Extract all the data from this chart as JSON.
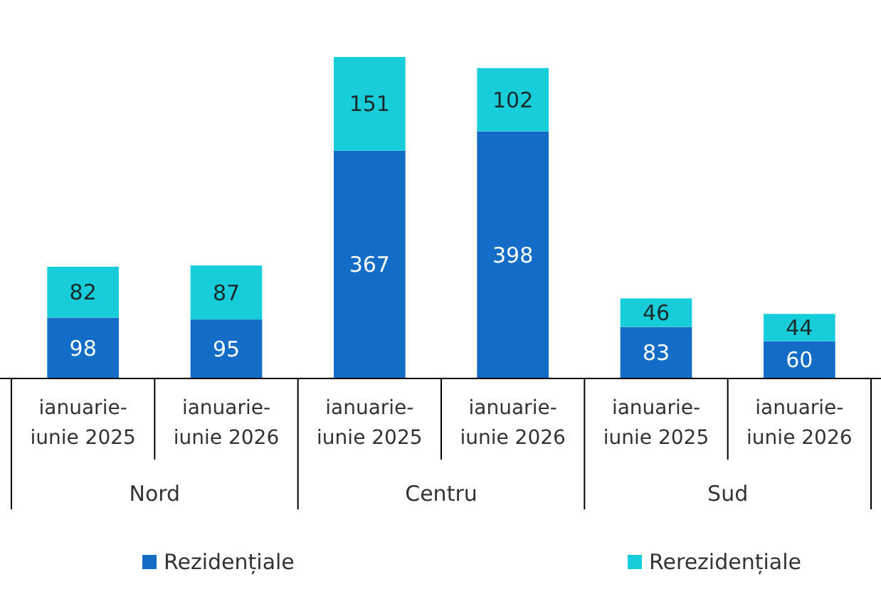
{
  "chart_data": {
    "type": "bar",
    "stacked": true,
    "data_labels": true,
    "legend": "bottom",
    "categories": [
      "ianuarie-iunie 2025",
      "ianuarie-iunie 2026",
      "ianuarie-iunie 2025",
      "ianuarie-iunie 2026",
      "ianuarie-iunie 2025",
      "ianuarie-iunie 2026"
    ],
    "series": [
      {
        "name": "Rezidențiale",
        "color": "#136dc6",
        "values": [
          98,
          95,
          367,
          398,
          83,
          60
        ]
      },
      {
        "name": "Rerezidențiale",
        "color": "#17cdd9",
        "values": [
          82,
          87,
          151,
          102,
          46,
          44
        ]
      }
    ],
    "annotations": [
      "Nord",
      "Centru",
      "Sud"
    ]
  }
}
